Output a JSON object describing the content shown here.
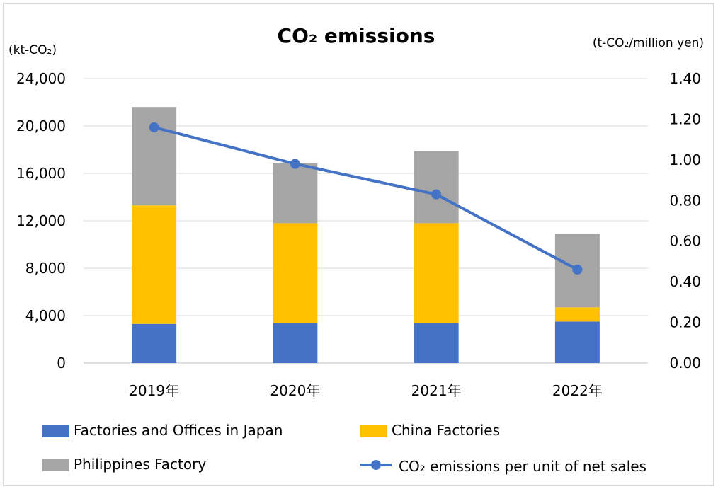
{
  "chart_data": {
    "type": "bar",
    "stacked": true,
    "title": "CO₂ emissions",
    "left_axis_unit": "(kt-CO₂)",
    "right_axis_unit": "(t-CO₂/million yen)",
    "categories": [
      "2019年",
      "2020年",
      "2021年",
      "2022年"
    ],
    "y_left": {
      "ticks": [
        "0",
        "4,000",
        "8,000",
        "12,000",
        "16,000",
        "20,000",
        "24,000"
      ],
      "ylim": [
        0,
        24000
      ]
    },
    "y_right": {
      "ticks": [
        "0.00",
        "0.20",
        "0.40",
        "0.60",
        "0.80",
        "1.00",
        "1.20",
        "1.40"
      ],
      "ylim": [
        0,
        1.4
      ]
    },
    "grid": true,
    "series": [
      {
        "name": "Factories and Offices in Japan",
        "type": "bar",
        "axis": "left",
        "color": "#4472C4",
        "values": [
          3300,
          3400,
          3400,
          3500
        ]
      },
      {
        "name": "China Factories",
        "type": "bar",
        "axis": "left",
        "color": "#FFC000",
        "values": [
          10000,
          8400,
          8400,
          1200
        ]
      },
      {
        "name": "Philippines Factory",
        "type": "bar",
        "axis": "left",
        "color": "#A5A5A5",
        "values": [
          8300,
          5100,
          6100,
          6200
        ]
      },
      {
        "name": "CO₂ emissions per unit of net sales",
        "type": "line",
        "axis": "right",
        "color": "#4472C4",
        "values": [
          1.16,
          0.98,
          0.83,
          0.46
        ]
      }
    ],
    "legend_position": "bottom"
  }
}
